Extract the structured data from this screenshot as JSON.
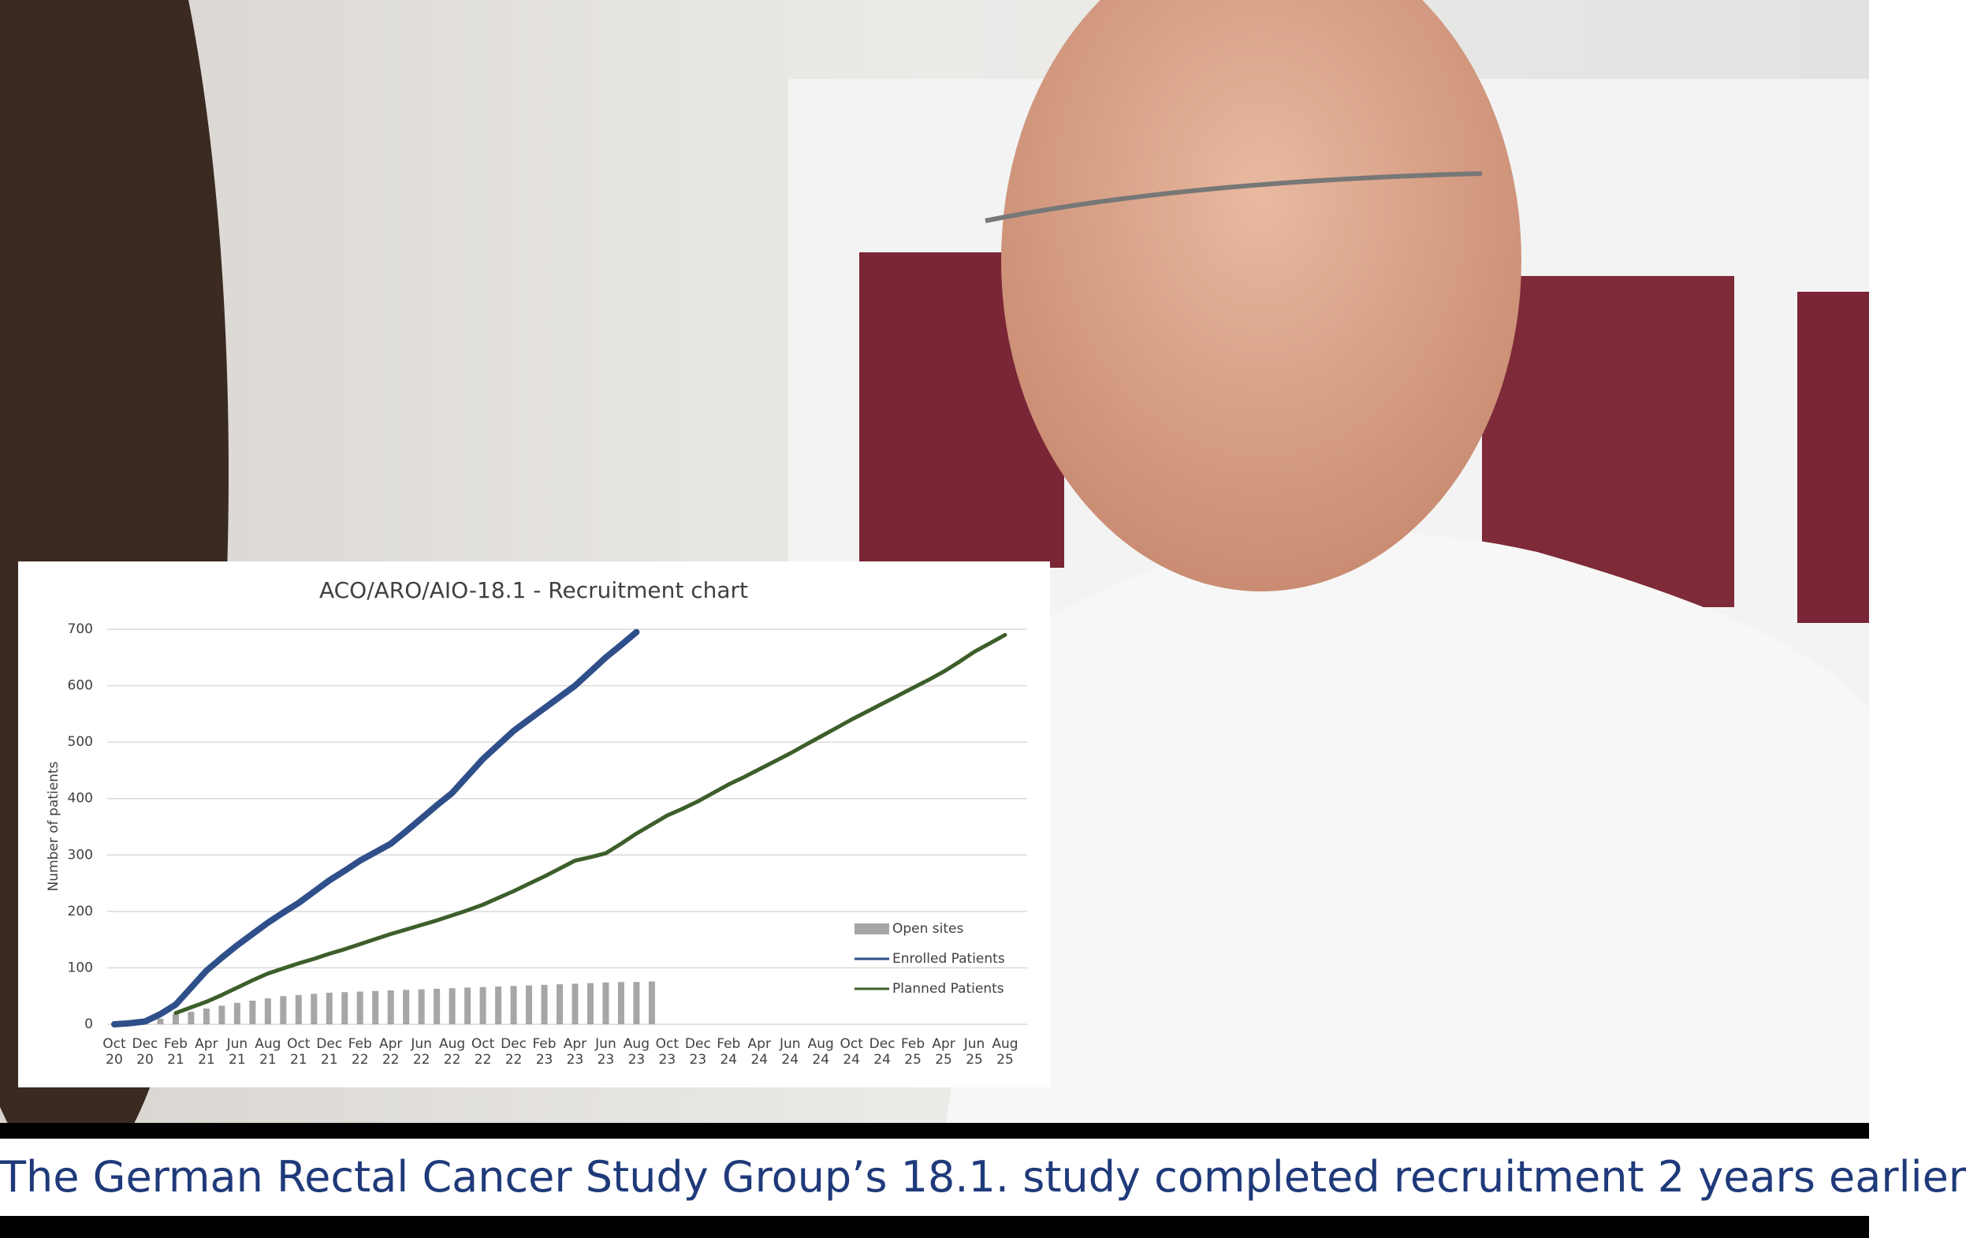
{
  "chart_data": {
    "type": "bar-line",
    "title": "ACO/ARO/AIO-18.1 - Recruitment chart",
    "y_label": "Number of patients",
    "categories": [
      "Oct 20",
      null,
      "Dec 20",
      null,
      "Feb 21",
      null,
      "Apr 21",
      null,
      "Jun 21",
      null,
      "Aug 21",
      null,
      "Oct 21",
      null,
      "Dec 21",
      null,
      "Feb 22",
      null,
      "Apr 22",
      null,
      "Jun 22",
      null,
      "Aug 22",
      null,
      "Oct 22",
      null,
      "Dec 22",
      null,
      "Feb 23",
      null,
      "Apr 23",
      null,
      "Jun 23",
      null,
      "Aug 23",
      null,
      "Oct 23",
      null,
      "Dec 23",
      null,
      "Feb 24",
      null,
      "Apr 24",
      null,
      "Jun 24",
      null,
      "Aug 24",
      null,
      "Oct 24",
      null,
      "Dec 24",
      null,
      "Feb 25",
      null,
      "Apr 25",
      null,
      "Jun 25",
      null,
      "Aug 25"
    ],
    "series": [
      {
        "name": "Open sites",
        "kind": "bar",
        "color": "#a6a6a6",
        "values": [
          2,
          4,
          6,
          10,
          18,
          22,
          28,
          33,
          38,
          42,
          46,
          50,
          52,
          54,
          56,
          57,
          58,
          59,
          60,
          61,
          62,
          63,
          64,
          65,
          66,
          67,
          68,
          69,
          70,
          71,
          72,
          73,
          74,
          75,
          75,
          76,
          null,
          null,
          null,
          null,
          null,
          null,
          null,
          null,
          null,
          null,
          null,
          null,
          null,
          null,
          null,
          null,
          null,
          null,
          null,
          null,
          null,
          null,
          null
        ]
      },
      {
        "name": "Enrolled Patients",
        "kind": "line",
        "color": "#2f4f8a",
        "values": [
          0,
          2,
          5,
          18,
          35,
          65,
          95,
          118,
          140,
          160,
          180,
          198,
          215,
          235,
          255,
          272,
          290,
          305,
          320,
          342,
          365,
          388,
          410,
          440,
          470,
          495,
          520,
          540,
          560,
          580,
          600,
          625,
          650,
          672,
          695,
          null,
          null,
          null,
          null,
          null,
          null,
          null,
          null,
          null,
          null,
          null,
          null,
          null,
          null,
          null,
          null,
          null,
          null,
          null,
          null,
          null,
          null,
          null,
          null
        ]
      },
      {
        "name": "Planned Patients",
        "kind": "line",
        "color": "#3d5e2a",
        "values": [
          null,
          null,
          null,
          null,
          20,
          30,
          40,
          52,
          65,
          78,
          90,
          99,
          108,
          116,
          125,
          133,
          142,
          151,
          160,
          168,
          176,
          184,
          193,
          202,
          212,
          224,
          236,
          249,
          262,
          276,
          290,
          296,
          303,
          320,
          338,
          354,
          370,
          382,
          395,
          410,
          425,
          438,
          452,
          466,
          480,
          495,
          510,
          525,
          540,
          554,
          568,
          582,
          596,
          610,
          625,
          642,
          660,
          675,
          690
        ]
      }
    ],
    "ylim": [
      0,
      700
    ],
    "yticks": [
      0,
      100,
      200,
      300,
      400,
      500,
      600,
      700
    ],
    "grid": true,
    "legend": "lower right"
  },
  "caption": "The German Rectal Cancer Study Group’s 18.1. study completed recruitment 2 years earlier"
}
